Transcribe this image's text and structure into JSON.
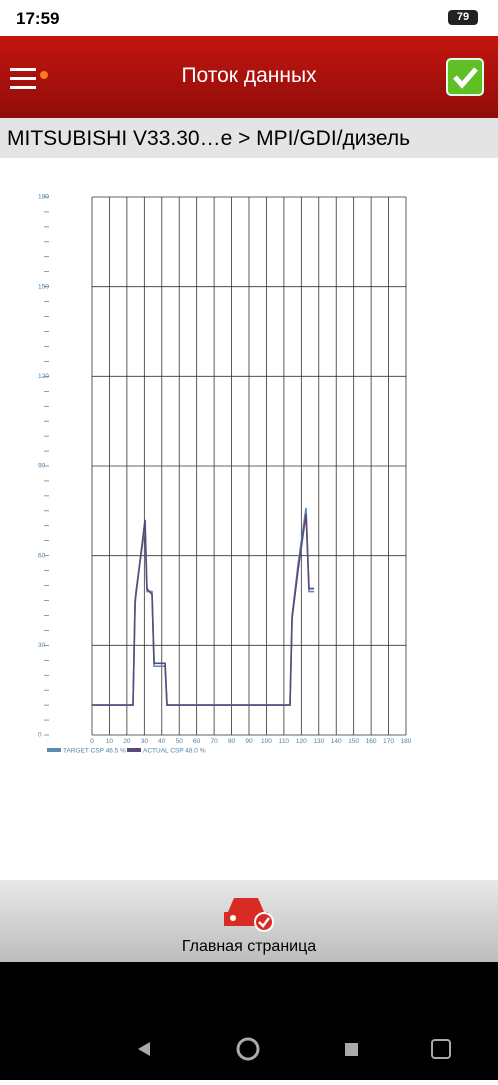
{
  "status_bar": {
    "time": "17:59",
    "battery": "79"
  },
  "header": {
    "title": "Поток данных"
  },
  "breadcrumb": "MITSUBISHI V33.30…e > MPI/GDI/дизель",
  "chart_data": {
    "type": "line",
    "x": [
      0,
      23.5,
      24.7,
      25.2,
      30.4,
      31.5,
      34.4,
      35.6,
      41.9,
      43,
      113.5,
      114.7,
      118.1,
      122.7,
      124.4,
      127.3
    ],
    "series": [
      {
        "name": "TARGET CSP 46.5 %",
        "color": "#5b8db0",
        "values": [
          10,
          10,
          45,
          48,
          70,
          48,
          48,
          23,
          23,
          10,
          10,
          40,
          57,
          76,
          48,
          48
        ]
      },
      {
        "name": "ACTUAL CSP 48.0 %",
        "color": "#5a4a7a",
        "values": [
          10,
          10,
          44,
          47,
          72,
          49,
          47,
          24,
          24,
          10,
          10,
          39,
          55,
          74,
          49,
          49
        ]
      }
    ],
    "xlim": [
      0,
      180
    ],
    "xticks": [
      0,
      10,
      20,
      30,
      40,
      50,
      60,
      70,
      80,
      90,
      100,
      110,
      120,
      130,
      140,
      150,
      160,
      170,
      180
    ],
    "ylim": [
      0,
      180
    ],
    "yticks": [
      0,
      30,
      60,
      90,
      120,
      150,
      180
    ],
    "grid": true
  },
  "footer": {
    "label": "Главная страница"
  }
}
